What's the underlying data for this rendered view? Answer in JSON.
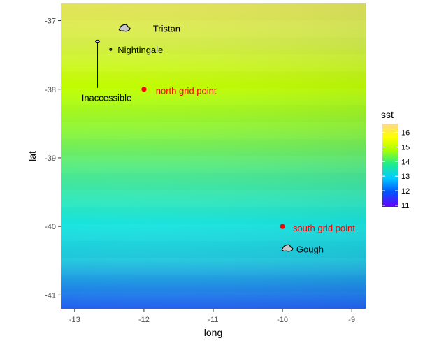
{
  "chart_data": {
    "type": "heatmap",
    "title": "",
    "xlabel": "long",
    "ylabel": "lat",
    "xlim": [
      -13.2,
      -8.8
    ],
    "ylim": [
      -41.2,
      -36.75
    ],
    "x_ticks": [
      {
        "value": -13,
        "label": "-13"
      },
      {
        "value": -12,
        "label": "-12"
      },
      {
        "value": -11,
        "label": "-11"
      },
      {
        "value": -10,
        "label": "-10"
      },
      {
        "value": -9,
        "label": "-9"
      }
    ],
    "y_ticks": [
      {
        "value": -37,
        "label": "-37"
      },
      {
        "value": -38,
        "label": "-38"
      },
      {
        "value": -39,
        "label": "-39"
      },
      {
        "value": -40,
        "label": "-40"
      },
      {
        "value": -41,
        "label": "-41"
      }
    ],
    "grid": false,
    "legend": {
      "title": "sst",
      "position": "right",
      "range": [
        10.9,
        16.6
      ],
      "ticks": [
        {
          "value": 11,
          "label": "11"
        },
        {
          "value": 12,
          "label": "12"
        },
        {
          "value": 13,
          "label": "13"
        },
        {
          "value": 14,
          "label": "14"
        },
        {
          "value": 15,
          "label": "15"
        },
        {
          "value": 16,
          "label": "16"
        }
      ]
    },
    "sst_field": {
      "lat_top": -36.75,
      "lat_bottom": -41.2,
      "values_top_to_bottom": [
        15.9,
        15.5,
        15.1,
        14.7,
        14.2,
        13.6,
        12.9,
        12.3,
        11.9
      ]
    },
    "grid_points": [
      {
        "label": "north grid point",
        "long": -12.0,
        "lat": -38.0,
        "color": "#ff0000"
      },
      {
        "label": "south grid point",
        "long": -10.0,
        "lat": -40.0,
        "color": "#ff0000"
      }
    ],
    "islands": [
      {
        "label": "Tristan",
        "long": -12.28,
        "lat": -37.11,
        "shape": "blob",
        "size": 0.13
      },
      {
        "label": "Nightingale",
        "long": -12.48,
        "lat": -37.42,
        "shape": "dot",
        "size": 0.03
      },
      {
        "label": "Inaccessible",
        "long": -12.67,
        "lat": -37.3,
        "shape": "sliver",
        "size": 0.04
      },
      {
        "label": "Gough",
        "long": -9.93,
        "lat": -40.32,
        "shape": "blob",
        "size": 0.13
      }
    ],
    "label_positions": [
      {
        "for": "Tristan",
        "long": -11.87,
        "lat": -37.11,
        "anchor": "start",
        "color": "#000000"
      },
      {
        "for": "Nightingale",
        "long": -12.38,
        "lat": -37.42,
        "anchor": "start",
        "color": "#000000"
      },
      {
        "for": "Inaccessible",
        "long": -12.9,
        "lat": -38.12,
        "anchor": "start",
        "color": "#000000"
      },
      {
        "for": "north grid point",
        "long": -11.83,
        "lat": -38.02,
        "anchor": "start",
        "color": "#ff0000"
      },
      {
        "for": "south grid point",
        "long": -9.85,
        "lat": -40.02,
        "anchor": "start",
        "color": "#ff0000"
      },
      {
        "for": "Gough",
        "long": -9.8,
        "lat": -40.33,
        "anchor": "start",
        "color": "#000000"
      }
    ],
    "inaccessible_leader": {
      "long": -12.67,
      "lat_from": -37.32,
      "lat_to": -37.98
    },
    "colors": {
      "scale_stops": [
        "#6600ff",
        "#0044ff",
        "#00ccff",
        "#22ee99",
        "#aaff00",
        "#ffff00",
        "#ffd27a"
      ],
      "axis_text": "#4d4d4d",
      "tick": "#333333",
      "frame": "#333333"
    }
  }
}
